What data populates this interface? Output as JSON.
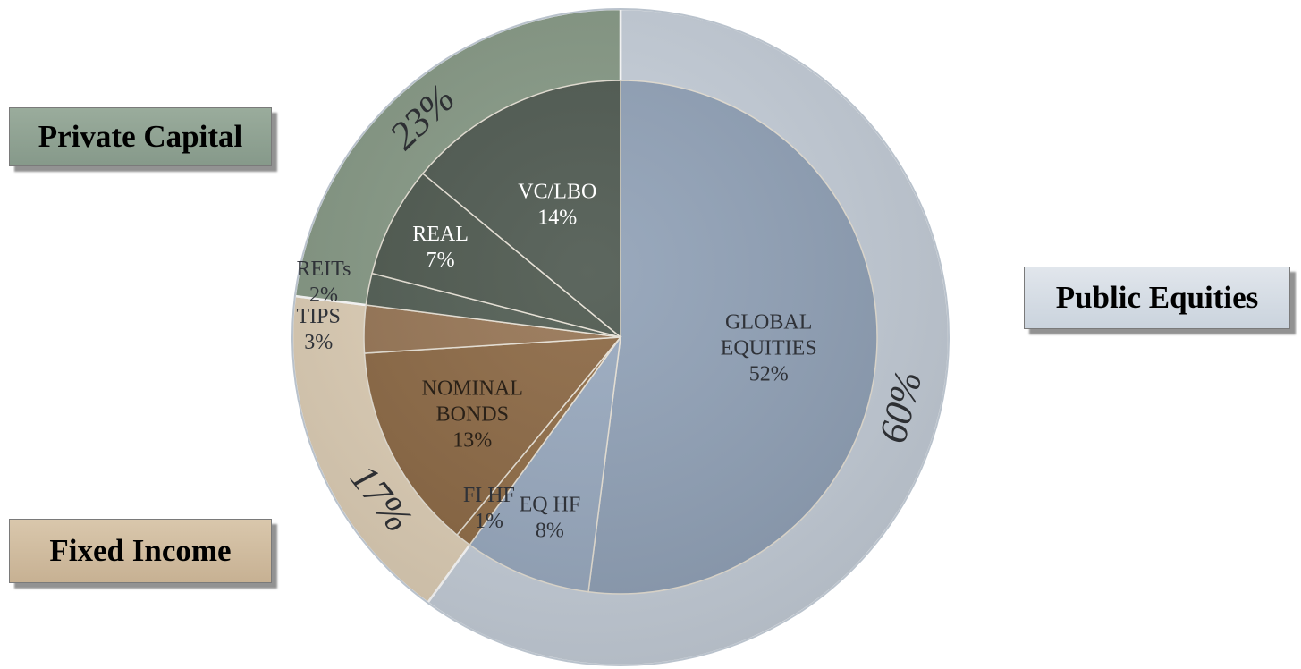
{
  "chart_data": {
    "type": "pie",
    "subtype": "nested-donut",
    "inner": [
      {
        "label": "GLOBAL EQUITIES",
        "value": 52,
        "value_label": "52%",
        "group": "public",
        "color": "#8fa0b6"
      },
      {
        "label": "EQ HF",
        "value": 8,
        "value_label": "8%",
        "group": "public",
        "color": "#97a8be"
      },
      {
        "label": "FI HF",
        "value": 1,
        "value_label": "1%",
        "group": "fixed",
        "color": "#8e6a43"
      },
      {
        "label": "NOMINAL BONDS",
        "value": 13,
        "value_label": "13%",
        "group": "fixed",
        "color": "#8a6641"
      },
      {
        "label": "TIPS",
        "value": 3,
        "value_label": "3%",
        "group": "fixed",
        "color": "#957352"
      },
      {
        "label": "REITs",
        "value": 2,
        "value_label": "2%",
        "group": "private",
        "color": "#4e5a50"
      },
      {
        "label": "REAL",
        "value": 7,
        "value_label": "7%",
        "group": "private",
        "color": "#4a554b"
      },
      {
        "label": "VC/LBO",
        "value": 14,
        "value_label": "14%",
        "group": "private",
        "color": "#4b564d"
      }
    ],
    "outer": [
      {
        "group": "public",
        "value": 60,
        "label": "60%",
        "color": "#c6cfda"
      },
      {
        "group": "fixed",
        "value": 17,
        "label": "17%",
        "color": "#dfcfb6"
      },
      {
        "group": "private",
        "value": 23,
        "label": "23%",
        "color": "#859884"
      }
    ],
    "legend": {
      "private": "Private Capital",
      "public": "Public Equities",
      "fixed": "Fixed Income"
    }
  }
}
